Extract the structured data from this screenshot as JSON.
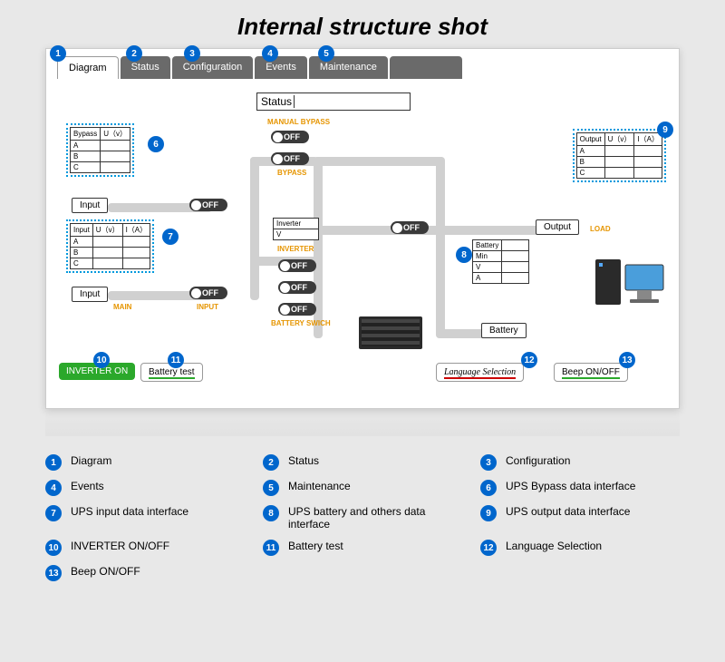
{
  "title": "Internal structure shot",
  "tabs": [
    {
      "label": "Diagram",
      "active": true,
      "badge": "1"
    },
    {
      "label": "Status",
      "active": false,
      "badge": "2"
    },
    {
      "label": "Configuration",
      "active": false,
      "badge": "3"
    },
    {
      "label": "Events",
      "active": false,
      "badge": "4"
    },
    {
      "label": "Maintenance",
      "active": false,
      "badge": "5"
    }
  ],
  "status_label": "Status",
  "tables": {
    "bypass": {
      "headers": [
        "Bypass",
        "U（v）"
      ],
      "rows": [
        "A",
        "B",
        "C"
      ],
      "badge": "6"
    },
    "input": {
      "headers": [
        "Input",
        "U（v）",
        "I（A）"
      ],
      "rows": [
        "A",
        "B",
        "C"
      ],
      "badge": "7"
    },
    "output": {
      "headers": [
        "Output",
        "U（v）",
        "I（A）"
      ],
      "rows": [
        "A",
        "B",
        "C"
      ],
      "badge": "9"
    },
    "battery": {
      "headers": [
        "Battery",
        ""
      ],
      "rows": [
        "Min",
        "V",
        "A"
      ],
      "badge": "8"
    },
    "inverter": {
      "headers": [
        "Inverter"
      ],
      "rows": [
        "V"
      ]
    }
  },
  "labels": {
    "input1": "Input",
    "input2": "Input",
    "output": "Output",
    "battery": "Battery",
    "load": "LOAD",
    "main": "MAIN"
  },
  "toggles": {
    "off": "OFF",
    "captions": {
      "manual_bypass": "MANUAL BYPASS",
      "bypass": "BYPASS",
      "inverter": "INVERTER",
      "input": "INPUT",
      "battery_switch": "BATTERY SWICH"
    }
  },
  "buttons": {
    "inverter_on": {
      "label": "INVERTER ON",
      "badge": "10"
    },
    "battery_test": {
      "label": "Battery test",
      "badge": "11"
    },
    "language": {
      "label": "Language Selection",
      "badge": "12"
    },
    "beep": {
      "label": "Beep ON/OFF",
      "badge": "13"
    }
  },
  "legend": [
    {
      "n": "1",
      "t": "Diagram"
    },
    {
      "n": "2",
      "t": "Status"
    },
    {
      "n": "3",
      "t": "Configuration"
    },
    {
      "n": "4",
      "t": "Events"
    },
    {
      "n": "5",
      "t": "Maintenance"
    },
    {
      "n": "6",
      "t": "UPS Bypass data interface"
    },
    {
      "n": "7",
      "t": "UPS input data interface"
    },
    {
      "n": "8",
      "t": "UPS battery and others data interface"
    },
    {
      "n": "9",
      "t": "UPS output data interface"
    },
    {
      "n": "10",
      "t": "INVERTER ON/OFF"
    },
    {
      "n": "11",
      "t": "Battery test"
    },
    {
      "n": "12",
      "t": "Language Selection"
    },
    {
      "n": "13",
      "t": "Beep ON/OFF"
    }
  ],
  "colors": {
    "badge": "#0066cc",
    "toggle": "#3a3a3a",
    "green": "#2ba82b",
    "red": "#cc0000",
    "orange": "#e69500",
    "dotted": "#0099dd"
  }
}
